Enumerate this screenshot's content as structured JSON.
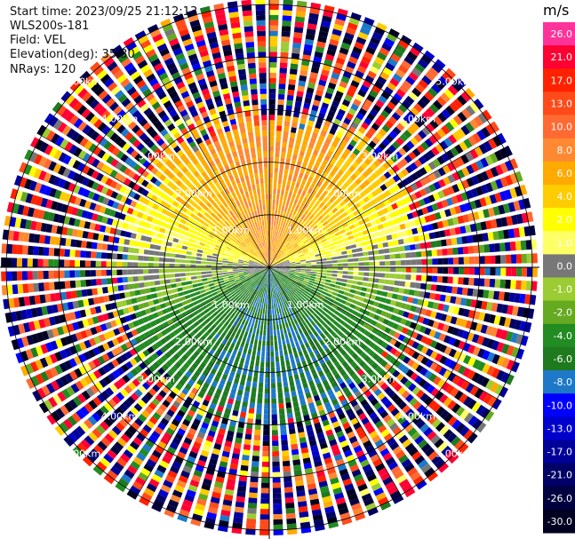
{
  "header": {
    "start_time": "Start time: 2023/09/25 21:12:13",
    "instrument": "WLS200s-181",
    "field": "Field: VEL",
    "elevation": "Elevation(deg): 35.30",
    "nrays": "NRays: 120"
  },
  "colorbar": {
    "unit": "m/s",
    "labels": [
      "26.0",
      "21.0",
      "17.0",
      "13.0",
      "10.0",
      "8.0",
      "6.0",
      "4.0",
      "2.0",
      "1.0",
      "0.0",
      "-1.0",
      "-2.0",
      "-4.0",
      "-6.0",
      "-8.0",
      "-10.0",
      "-13.0",
      "-17.0",
      "-21.0",
      "-26.0",
      "-30.0"
    ],
    "colors": [
      "#ff3399",
      "#ff0033",
      "#ff2200",
      "#ff4a1a",
      "#ff6a33",
      "#ff8833",
      "#ffaa00",
      "#ffcc00",
      "#ffff00",
      "#ffff66",
      "#777777",
      "#9ccc33",
      "#66aa22",
      "#228b22",
      "#1f7a1f",
      "#1e78c8",
      "#0000ff",
      "#0000cc",
      "#000099",
      "#000066",
      "#000040",
      "#000020"
    ]
  },
  "chart_data": {
    "type": "heatmap",
    "description_field": "VEL",
    "nrays": 120,
    "range_rings_km": [
      1.0,
      2.0,
      3.0,
      4.0,
      5.0
    ],
    "ring_labels": [
      "1.00km",
      "2.00km",
      "3.00km",
      "4.00km",
      "5.00km"
    ],
    "max_range_km": 5.1,
    "velocity_pattern": {
      "north_sector": 8.0,
      "east_west": 0.0,
      "south_sector": -6.0,
      "clean_range_km": 2.9
    },
    "vmin": -30.0,
    "vmax": 26.0
  }
}
